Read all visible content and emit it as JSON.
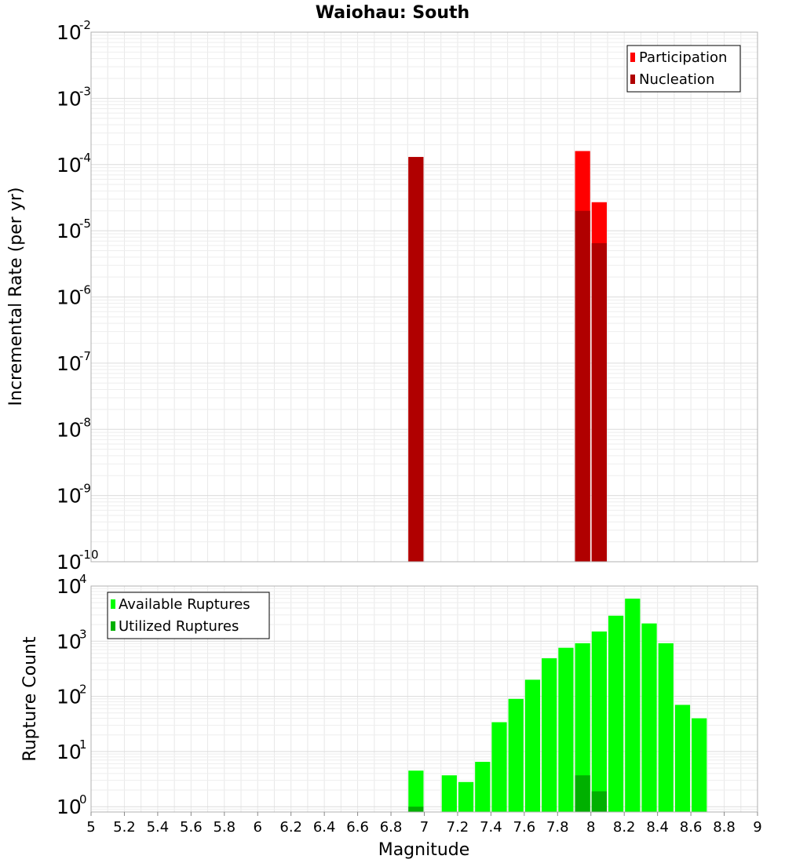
{
  "chart_data": [
    {
      "type": "bar",
      "title": "Waiohau: South",
      "xlabel": "",
      "ylabel": "Incremental Rate (per yr)",
      "yscale": "log",
      "ylim": [
        1e-10,
        0.01
      ],
      "xlim": [
        5,
        9
      ],
      "grid": true,
      "legend_position": "top-right",
      "ytick_labels": [
        {
          "value": 1e-10,
          "base": "10",
          "exp": "-10"
        },
        {
          "value": 1e-09,
          "base": "10",
          "exp": "-9"
        },
        {
          "value": 1e-08,
          "base": "10",
          "exp": "-8"
        },
        {
          "value": 1e-07,
          "base": "10",
          "exp": "-7"
        },
        {
          "value": 1e-06,
          "base": "10",
          "exp": "-6"
        },
        {
          "value": 1e-05,
          "base": "10",
          "exp": "-5"
        },
        {
          "value": 0.0001,
          "base": "10",
          "exp": "-4"
        },
        {
          "value": 0.001,
          "base": "10",
          "exp": "-3"
        },
        {
          "value": 0.01,
          "base": "10",
          "exp": "-2"
        }
      ],
      "series": [
        {
          "name": "Participation",
          "color": "#ff0000",
          "points": [
            {
              "x": 6.95,
              "y": 0.00013
            },
            {
              "x": 7.95,
              "y": 0.00016
            },
            {
              "x": 8.05,
              "y": 2.7e-05
            }
          ]
        },
        {
          "name": "Nucleation",
          "color": "#b00000",
          "points": [
            {
              "x": 6.95,
              "y": 0.00013
            },
            {
              "x": 7.95,
              "y": 2e-05
            },
            {
              "x": 8.05,
              "y": 6.5e-06
            }
          ]
        }
      ]
    },
    {
      "type": "bar",
      "title": "",
      "xlabel": "Magnitude",
      "ylabel": "Rupture Count",
      "yscale": "log",
      "ylim": [
        0.8,
        10000
      ],
      "xlim": [
        5,
        9
      ],
      "grid": true,
      "legend_position": "top-left",
      "xtick_labels": [
        "5",
        "5.2",
        "5.4",
        "5.6",
        "5.8",
        "6",
        "6.2",
        "6.4",
        "6.6",
        "6.8",
        "7",
        "7.2",
        "7.4",
        "7.6",
        "7.8",
        "8",
        "8.2",
        "8.4",
        "8.6",
        "8.8",
        "9"
      ],
      "ytick_labels": [
        {
          "value": 1,
          "base": "10",
          "exp": "0"
        },
        {
          "value": 10,
          "base": "10",
          "exp": "1"
        },
        {
          "value": 100,
          "base": "10",
          "exp": "2"
        },
        {
          "value": 1000,
          "base": "10",
          "exp": "3"
        },
        {
          "value": 10000,
          "base": "10",
          "exp": "4"
        }
      ],
      "series": [
        {
          "name": "Available Ruptures",
          "color": "#00ff00",
          "points": [
            {
              "x": 6.95,
              "y": 4.5
            },
            {
              "x": 7.15,
              "y": 3.7
            },
            {
              "x": 7.25,
              "y": 2.8
            },
            {
              "x": 7.35,
              "y": 6.5
            },
            {
              "x": 7.45,
              "y": 34
            },
            {
              "x": 7.55,
              "y": 90
            },
            {
              "x": 7.65,
              "y": 200
            },
            {
              "x": 7.75,
              "y": 490
            },
            {
              "x": 7.85,
              "y": 760
            },
            {
              "x": 7.95,
              "y": 920
            },
            {
              "x": 8.05,
              "y": 1500
            },
            {
              "x": 8.15,
              "y": 2900
            },
            {
              "x": 8.25,
              "y": 5900
            },
            {
              "x": 8.35,
              "y": 2100
            },
            {
              "x": 8.45,
              "y": 920
            },
            {
              "x": 8.55,
              "y": 70
            },
            {
              "x": 8.65,
              "y": 40
            }
          ]
        },
        {
          "name": "Utilized Ruptures",
          "color": "#00b000",
          "points": [
            {
              "x": 6.95,
              "y": 1.0
            },
            {
              "x": 7.95,
              "y": 3.7
            },
            {
              "x": 8.05,
              "y": 1.9
            }
          ]
        }
      ]
    }
  ]
}
